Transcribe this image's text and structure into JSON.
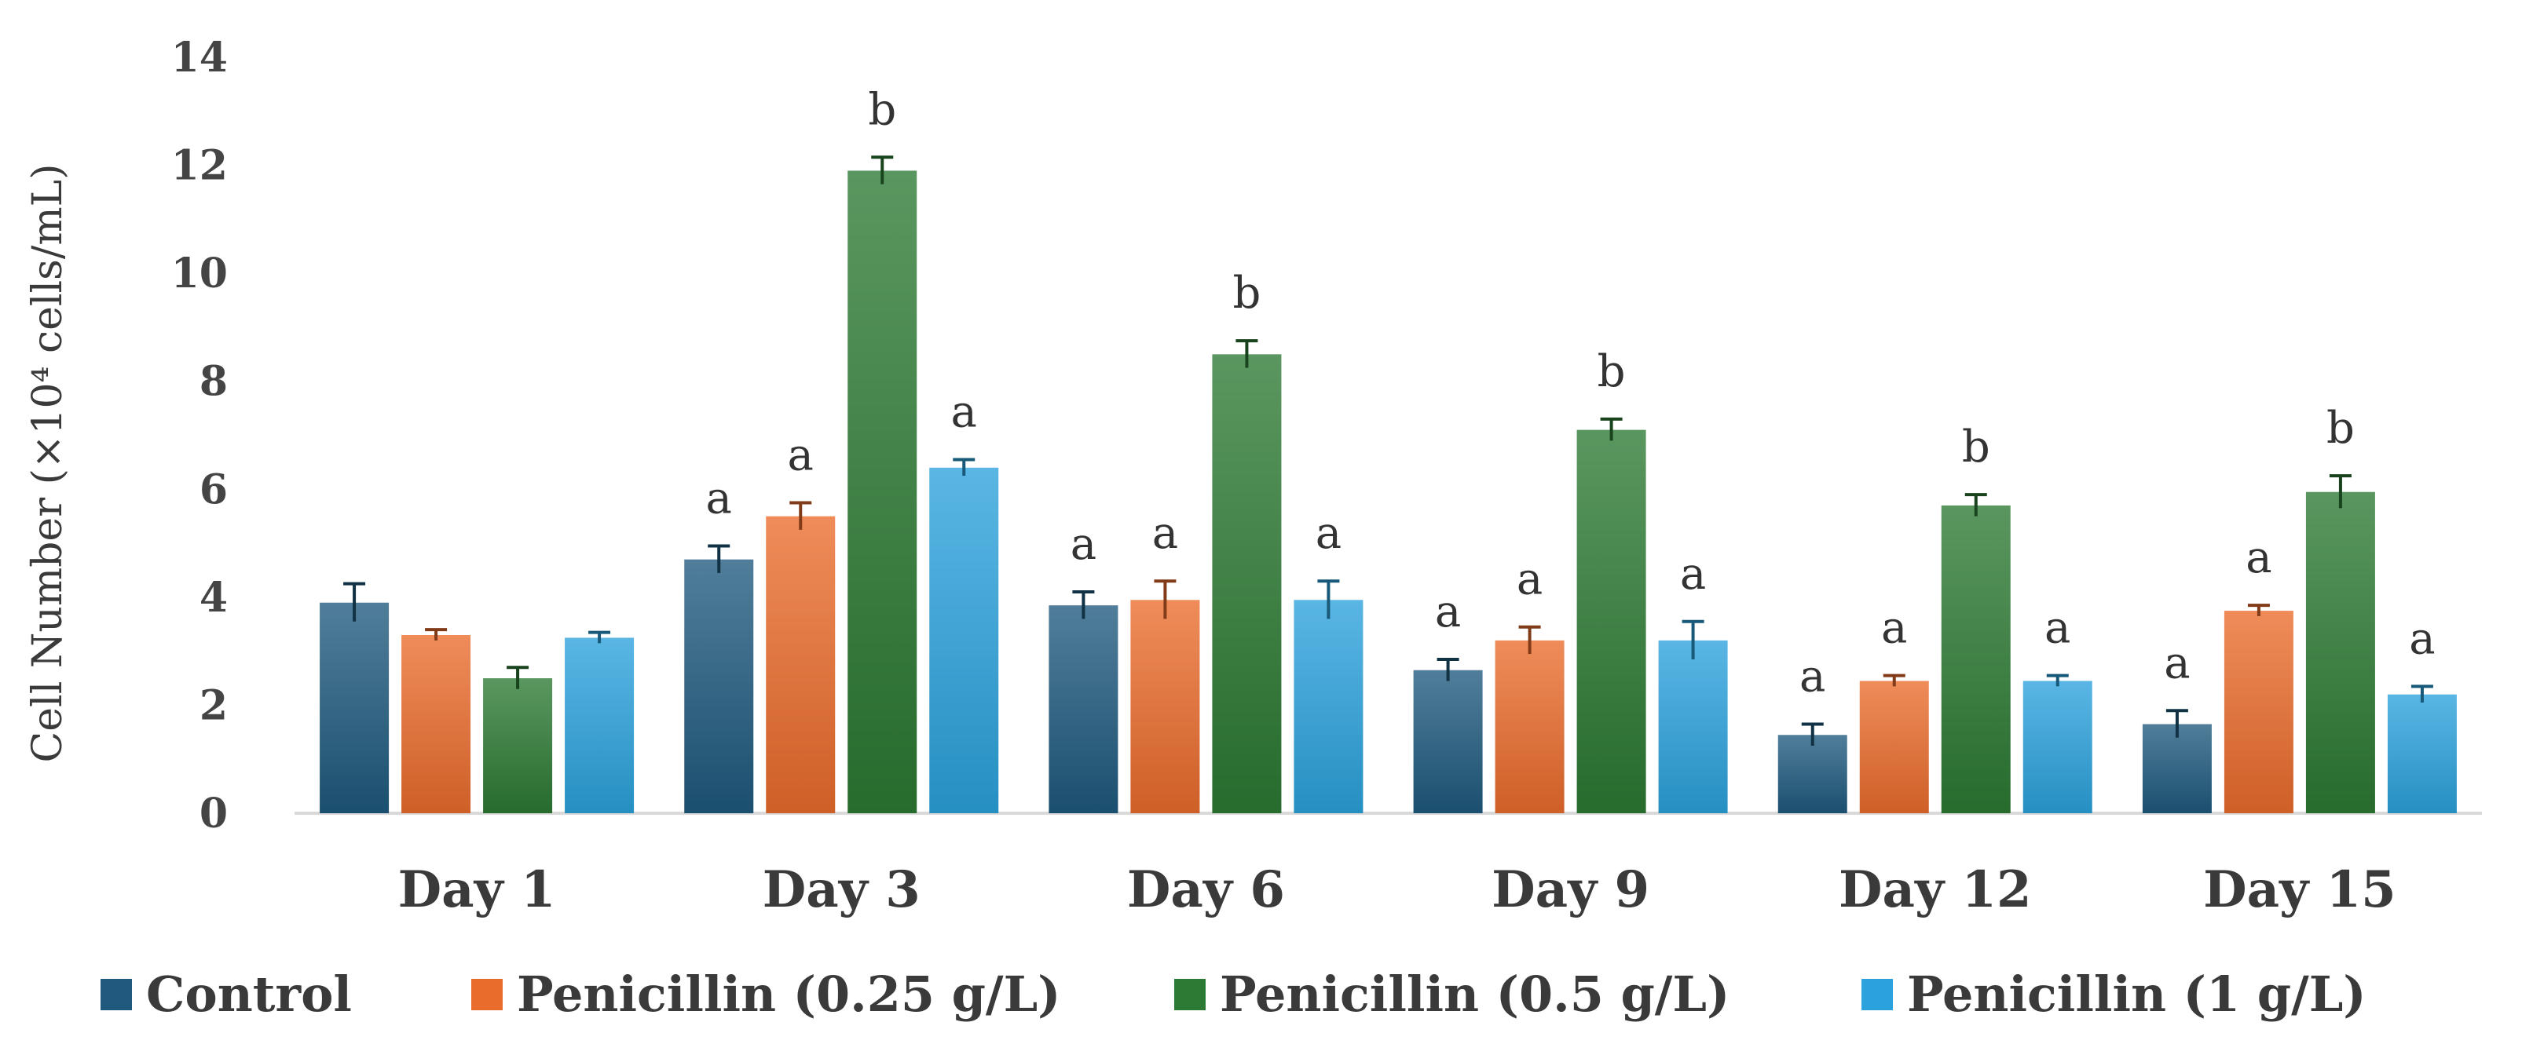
{
  "chart_data": {
    "type": "bar",
    "title": "",
    "xlabel": "",
    "ylabel": "Cell Number (×10⁴ cells/mL)",
    "ylim": [
      0,
      14
    ],
    "yticks": [
      0,
      2,
      4,
      6,
      8,
      10,
      12,
      14
    ],
    "grid": false,
    "legend_position": "bottom",
    "categories": [
      "Day 1",
      "Day 3",
      "Day 6",
      "Day 9",
      "Day 12",
      "Day 15"
    ],
    "series": [
      {
        "name": "Control",
        "color": "#1f5a7e",
        "values": [
          3.9,
          4.7,
          3.85,
          2.65,
          1.45,
          1.65
        ],
        "errors": [
          0.35,
          0.25,
          0.25,
          0.2,
          0.2,
          0.25
        ],
        "letters": [
          "",
          "a",
          "a",
          "a",
          "a",
          "a"
        ]
      },
      {
        "name": "Penicillin (0.25 g/L)",
        "color": "#ea6c2c",
        "values": [
          3.3,
          5.5,
          3.95,
          3.2,
          2.45,
          3.75
        ],
        "errors": [
          0.1,
          0.25,
          0.35,
          0.25,
          0.1,
          0.1
        ],
        "letters": [
          "",
          "a",
          "a",
          "a",
          "a",
          "a"
        ]
      },
      {
        "name": "Penicillin (0.5 g/L)",
        "color": "#2c7a33",
        "values": [
          2.5,
          11.9,
          8.5,
          7.1,
          5.7,
          5.95
        ],
        "errors": [
          0.2,
          0.25,
          0.25,
          0.2,
          0.2,
          0.3
        ],
        "letters": [
          "",
          "b",
          "b",
          "b",
          "b",
          "b"
        ]
      },
      {
        "name": "Penicillin (1 g/L)",
        "color": "#2ba2dc",
        "values": [
          3.25,
          6.4,
          3.95,
          3.2,
          2.45,
          2.2
        ],
        "errors": [
          0.1,
          0.15,
          0.35,
          0.35,
          0.1,
          0.15
        ],
        "letters": [
          "",
          "a",
          "a",
          "a",
          "a",
          "a"
        ]
      }
    ]
  }
}
